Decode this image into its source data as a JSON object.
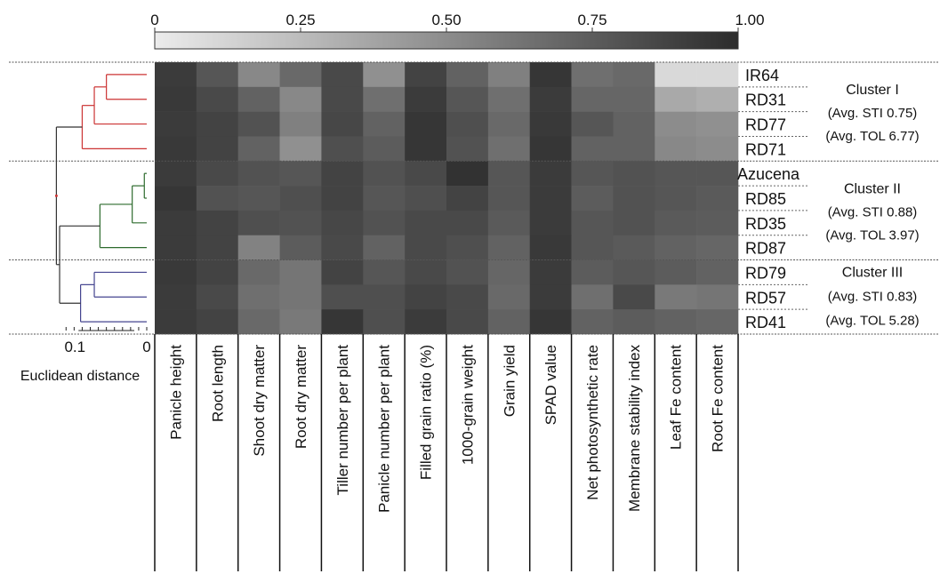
{
  "chart_data": {
    "type": "heatmap",
    "title": "",
    "color_scale": {
      "ticks": [
        "0",
        "0.25",
        "0.50",
        "0.75",
        "1.00"
      ],
      "range": [
        0,
        1
      ],
      "colors": [
        "#ececec",
        "#2c2c2c"
      ]
    },
    "columns": [
      "Panicle height",
      "Root length",
      "Shoot dry matter",
      "Root dry matter",
      "Tiller number per plant",
      "Panicle number per plant",
      "Filled grain ratio (%)",
      "1000-grain weight",
      "Grain yield",
      "SPAD value",
      "Net photosynthetic rate",
      "Membrane stability index",
      "Leaf Fe content",
      "Root Fe content"
    ],
    "rows": [
      "IR64",
      "RD31",
      "RD77",
      "RD71",
      "Azucena",
      "RD85",
      "RD35",
      "RD87",
      "RD79",
      "RD57",
      "RD41"
    ],
    "values": [
      [
        0.92,
        0.78,
        0.52,
        0.68,
        0.85,
        0.48,
        0.88,
        0.72,
        0.56,
        0.95,
        0.65,
        0.68,
        0.1,
        0.1
      ],
      [
        0.93,
        0.85,
        0.72,
        0.52,
        0.85,
        0.65,
        0.92,
        0.78,
        0.65,
        0.92,
        0.7,
        0.7,
        0.35,
        0.32
      ],
      [
        0.92,
        0.88,
        0.8,
        0.56,
        0.86,
        0.72,
        0.95,
        0.82,
        0.68,
        0.93,
        0.78,
        0.72,
        0.5,
        0.48
      ],
      [
        0.93,
        0.88,
        0.72,
        0.48,
        0.82,
        0.75,
        0.95,
        0.8,
        0.65,
        0.95,
        0.72,
        0.72,
        0.52,
        0.5
      ],
      [
        0.92,
        0.85,
        0.8,
        0.78,
        0.88,
        0.8,
        0.85,
        0.97,
        0.78,
        0.92,
        0.78,
        0.8,
        0.78,
        0.78
      ],
      [
        0.95,
        0.8,
        0.78,
        0.82,
        0.88,
        0.78,
        0.82,
        0.88,
        0.78,
        0.92,
        0.75,
        0.8,
        0.78,
        0.76
      ],
      [
        0.92,
        0.88,
        0.82,
        0.8,
        0.86,
        0.8,
        0.85,
        0.85,
        0.76,
        0.92,
        0.78,
        0.8,
        0.76,
        0.75
      ],
      [
        0.92,
        0.88,
        0.55,
        0.75,
        0.85,
        0.72,
        0.85,
        0.82,
        0.72,
        0.93,
        0.78,
        0.76,
        0.72,
        0.7
      ],
      [
        0.93,
        0.88,
        0.68,
        0.62,
        0.88,
        0.78,
        0.85,
        0.8,
        0.7,
        0.92,
        0.75,
        0.78,
        0.75,
        0.72
      ],
      [
        0.92,
        0.85,
        0.65,
        0.62,
        0.82,
        0.82,
        0.88,
        0.85,
        0.68,
        0.92,
        0.65,
        0.85,
        0.6,
        0.62
      ],
      [
        0.92,
        0.88,
        0.68,
        0.6,
        0.95,
        0.82,
        0.92,
        0.85,
        0.72,
        0.95,
        0.72,
        0.75,
        0.72,
        0.7
      ]
    ],
    "row_clusters": [
      {
        "label": "Cluster I",
        "stats": [
          "(Avg. STI 0.75)",
          "(Avg. TOL 6.77)"
        ],
        "color": "#cc3333",
        "rows": [
          "IR64",
          "RD31",
          "RD77",
          "RD71"
        ]
      },
      {
        "label": "Cluster II",
        "stats": [
          "(Avg. STI 0.88)",
          "(Avg. TOL 3.97)"
        ],
        "color": "#2e6b2e",
        "rows": [
          "Azucena",
          "RD85",
          "RD35",
          "RD87"
        ]
      },
      {
        "label": "Cluster III",
        "stats": [
          "(Avg. STI 0.83)",
          "(Avg. TOL 5.28)"
        ],
        "color": "#44448f",
        "rows": [
          "RD79",
          "RD57",
          "RD41"
        ]
      }
    ],
    "dendrogram": {
      "axis_label": "Euclidean distance",
      "tick_labels": [
        "0",
        "0.1"
      ],
      "range": [
        0,
        0.14
      ]
    },
    "grid": false
  }
}
